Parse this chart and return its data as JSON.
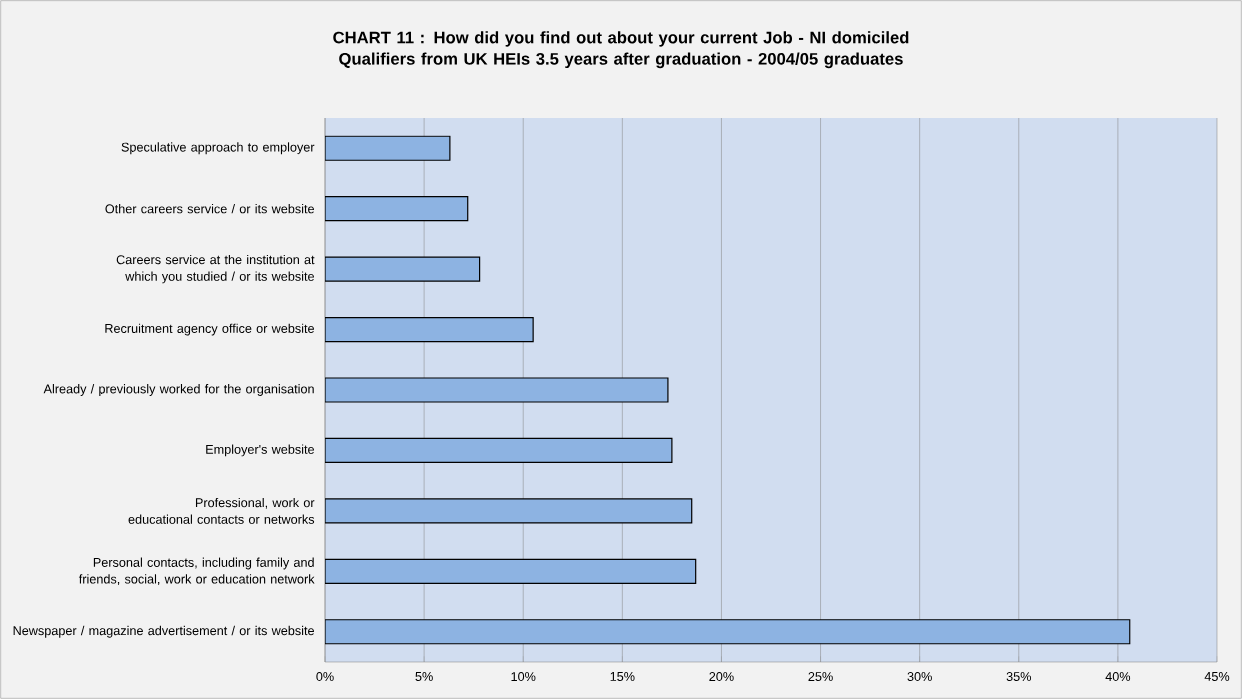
{
  "chart_data": {
    "type": "bar",
    "orientation": "horizontal",
    "title": "CHART 11 : How did you find out about your current Job - NI domiciled Qualifiers from UK HEIs 3.5 years after graduation - 2004/05 graduates",
    "categories": [
      "Speculative approach to employer",
      "Other careers service / or its website",
      "Careers service at the institution at which you studied / or its website",
      "Recruitment agency office or website",
      "Already / previously worked for the organisation",
      "Employer's website",
      "Professional, work or educational contacts or networks",
      "Personal contacts, including family and friends, social, work or education network",
      "Newspaper / magazine advertisement / or its website"
    ],
    "values": [
      6.3,
      7.2,
      7.8,
      10.5,
      17.3,
      17.5,
      18.5,
      18.7,
      40.6
    ],
    "color": "#8db3e2",
    "xlim": [
      0,
      45
    ],
    "xticks": [
      {
        "value": 0,
        "label": "0%"
      },
      {
        "value": 5,
        "label": "5%"
      },
      {
        "value": 10,
        "label": "10%"
      },
      {
        "value": 15,
        "label": "15%"
      },
      {
        "value": 20,
        "label": "20%"
      },
      {
        "value": 25,
        "label": "25%"
      },
      {
        "value": 30,
        "label": "30%"
      },
      {
        "value": 35,
        "label": "35%"
      },
      {
        "value": 40,
        "label": "40%"
      },
      {
        "value": 45,
        "label": "45%"
      }
    ],
    "grid": "x"
  }
}
